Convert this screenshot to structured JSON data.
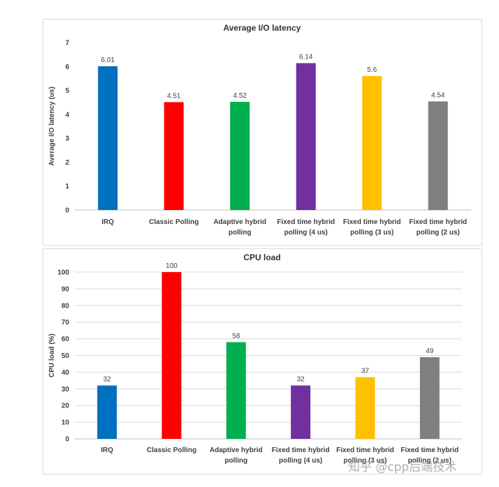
{
  "chart_data": [
    {
      "type": "bar",
      "title": "Average I/O latency",
      "xlabel": "",
      "ylabel": "Average I/O latency (us)",
      "ylim": [
        0,
        7
      ],
      "yticks": [
        0,
        1,
        2,
        3,
        4,
        5,
        6,
        7
      ],
      "grid": false,
      "categories": [
        [
          "IRQ"
        ],
        [
          "Classic Polling"
        ],
        [
          "Adaptive hybrid",
          "polling"
        ],
        [
          "Fixed time hybrid",
          "polling (4 us)"
        ],
        [
          "Fixed time hybrid",
          "polling (3 us)"
        ],
        [
          "Fixed time hybrid",
          "polling (2 us)"
        ]
      ],
      "values": [
        6.01,
        4.51,
        4.52,
        6.14,
        5.6,
        4.54
      ],
      "labels": [
        "6.01",
        "4.51",
        "4.52",
        "6.14",
        "5.6",
        "4.54"
      ],
      "colors": [
        "#0070c0",
        "#ff0000",
        "#00b050",
        "#7030a0",
        "#ffc000",
        "#7f7f7f"
      ]
    },
    {
      "type": "bar",
      "title": "CPU load",
      "xlabel": "",
      "ylabel": "CPU load (%)",
      "ylim": [
        0,
        100
      ],
      "yticks": [
        0,
        10,
        20,
        30,
        40,
        50,
        60,
        70,
        80,
        90,
        100
      ],
      "grid": true,
      "categories": [
        [
          "IRQ"
        ],
        [
          "Classic Polling"
        ],
        [
          "Adaptive hybrid",
          "polling"
        ],
        [
          "Fixed time hybrid",
          "polling (4 us)"
        ],
        [
          "Fixed time hybrid",
          "polling (3 us)"
        ],
        [
          "Fixed time hybrid",
          "polling (2 us)"
        ]
      ],
      "values": [
        32,
        100,
        58,
        32,
        37,
        49
      ],
      "labels": [
        "32",
        "100",
        "58",
        "32",
        "37",
        "49"
      ],
      "colors": [
        "#0070c0",
        "#ff0000",
        "#00b050",
        "#7030a0",
        "#ffc000",
        "#7f7f7f"
      ]
    }
  ],
  "watermark": "知乎 @cpp后端技术"
}
